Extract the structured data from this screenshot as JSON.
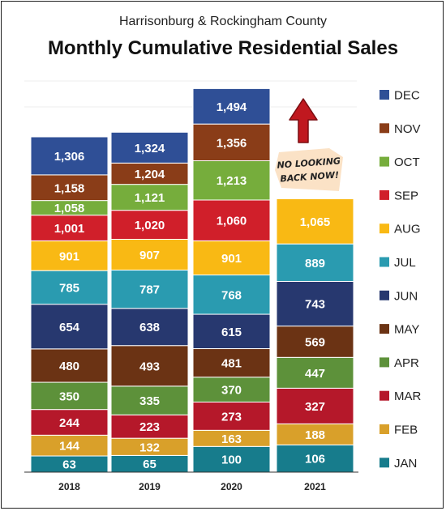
{
  "header": {
    "subtitle": "Harrisonburg & Rockingham County",
    "title": "Monthly Cumulative Residential Sales"
  },
  "annotation": {
    "line1": "NO LOOKING",
    "line2": "BACK NOW!"
  },
  "chart_data": {
    "type": "bar",
    "stacked": true,
    "title": "Monthly Cumulative Residential Sales",
    "subtitle": "Harrisonburg & Rockingham County",
    "categories": [
      "2018",
      "2019",
      "2020",
      "2021"
    ],
    "grid": false,
    "legend_position": "right",
    "series": [
      {
        "name": "JAN",
        "color": "#177c8c",
        "values": [
          63,
          65,
          100,
          106
        ]
      },
      {
        "name": "FEB",
        "color": "#d9a02a",
        "values": [
          144,
          132,
          163,
          188
        ]
      },
      {
        "name": "MAR",
        "color": "#b5182a",
        "values": [
          244,
          223,
          273,
          327
        ]
      },
      {
        "name": "APR",
        "color": "#5d913a",
        "values": [
          350,
          335,
          370,
          447
        ]
      },
      {
        "name": "MAY",
        "color": "#6b3314",
        "values": [
          480,
          493,
          481,
          569
        ]
      },
      {
        "name": "JUN",
        "color": "#27386f",
        "values": [
          654,
          638,
          615,
          743
        ]
      },
      {
        "name": "JUL",
        "color": "#2a9bb0",
        "values": [
          785,
          787,
          768,
          889
        ]
      },
      {
        "name": "AUG",
        "color": "#f9b914",
        "values": [
          901,
          907,
          901,
          1065
        ]
      },
      {
        "name": "SEP",
        "color": "#d01f2a",
        "values": [
          1001,
          1020,
          1060,
          null
        ]
      },
      {
        "name": "OCT",
        "color": "#76ad3c",
        "values": [
          1058,
          1121,
          1213,
          null
        ]
      },
      {
        "name": "NOV",
        "color": "#8a3d18",
        "values": [
          1158,
          1204,
          1356,
          null
        ]
      },
      {
        "name": "DEC",
        "color": "#2f4f96",
        "values": [
          1306,
          1324,
          1494,
          null
        ]
      }
    ]
  }
}
